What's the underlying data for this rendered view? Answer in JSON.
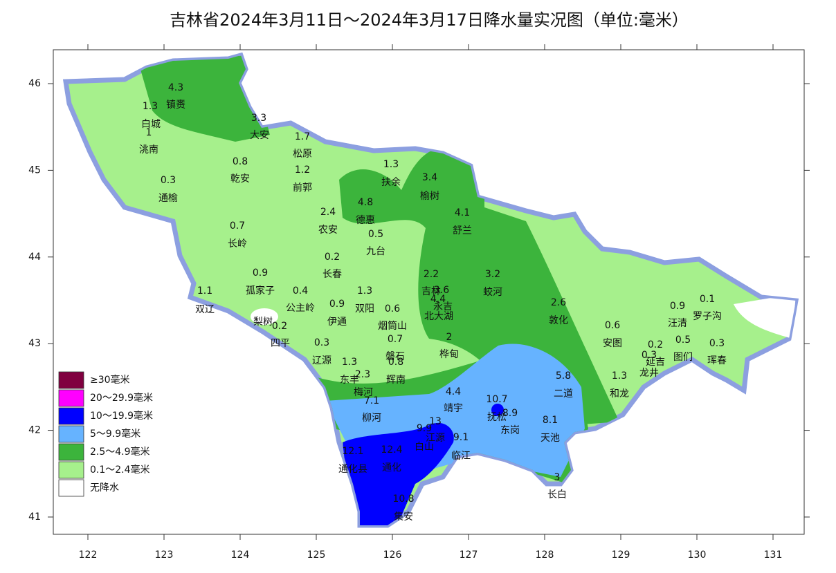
{
  "title": "吉林省2024年3月11日～2024年3月17日降水量实况图（单位:毫米）",
  "map": {
    "xticks": [
      122,
      123,
      124,
      125,
      126,
      127,
      128,
      129,
      130,
      131
    ],
    "yticks": [
      41,
      42,
      43,
      44,
      45,
      46
    ],
    "stations": [
      {
        "name": "镇赉",
        "value": 4.3
      },
      {
        "name": "白城",
        "value": 1.3
      },
      {
        "name": "洮南",
        "value": 1
      },
      {
        "name": "大安",
        "value": 3.3
      },
      {
        "name": "松原",
        "value": 1.7
      },
      {
        "name": "乾安",
        "value": 0.8
      },
      {
        "name": "前郭",
        "value": 1.2
      },
      {
        "name": "扶余",
        "value": 1.3
      },
      {
        "name": "通榆",
        "value": 0.3
      },
      {
        "name": "榆树",
        "value": 3.4
      },
      {
        "name": "德惠",
        "value": 4.8
      },
      {
        "name": "农安",
        "value": 2.4
      },
      {
        "name": "舒兰",
        "value": 4.1
      },
      {
        "name": "九台",
        "value": 0.5
      },
      {
        "name": "长岭",
        "value": 0.7
      },
      {
        "name": "长春",
        "value": 0.2
      },
      {
        "name": "吉林",
        "value": 2.2
      },
      {
        "name": "蛟河",
        "value": 3.2
      },
      {
        "name": "永吉",
        "value": 3.6
      },
      {
        "name": "北大湖",
        "value": 4.4
      },
      {
        "name": "孤家子",
        "value": 0.9
      },
      {
        "name": "公主岭",
        "value": 0.4
      },
      {
        "name": "双辽",
        "value": 1.1
      },
      {
        "name": "伊通",
        "value": 0.9
      },
      {
        "name": "双阳",
        "value": 1.3
      },
      {
        "name": "烟筒山",
        "value": 0.6
      },
      {
        "name": "梨树"
      },
      {
        "name": "四平",
        "value": 0.2
      },
      {
        "name": "敦化",
        "value": 2.6
      },
      {
        "name": "汪清",
        "value": 0.9
      },
      {
        "name": "罗子沟",
        "value": 0.1
      },
      {
        "name": "安图",
        "value": 0.6
      },
      {
        "name": "磐石",
        "value": 0.7
      },
      {
        "name": "桦甸",
        "value": 2
      },
      {
        "name": "辽源",
        "value": 0.3
      },
      {
        "name": "延吉",
        "value": 0.2
      },
      {
        "name": "图们",
        "value": 0.5
      },
      {
        "name": "龙井",
        "value": 0.3
      },
      {
        "name": "珲春",
        "value": 0.3
      },
      {
        "name": "东丰",
        "value": 1.3
      },
      {
        "name": "辉南",
        "value": 0.8
      },
      {
        "name": "梅河",
        "value": 2.3
      },
      {
        "name": "二道",
        "value": 5.8
      },
      {
        "name": "和龙",
        "value": 1.3
      },
      {
        "name": "靖宇",
        "value": 4.4
      },
      {
        "name": "柳河",
        "value": 7.1
      },
      {
        "name": "抚松",
        "value": 10.7
      },
      {
        "name": "东岗",
        "value": 8.9
      },
      {
        "name": "天池",
        "value": 8.1
      },
      {
        "name": "江源",
        "value": 13
      },
      {
        "name": "白山",
        "value": 9.9
      },
      {
        "name": "临江",
        "value": 9.1
      },
      {
        "name": "通化县",
        "value": 12.1
      },
      {
        "name": "通化",
        "value": 12.4
      },
      {
        "name": "长白",
        "value": 3
      },
      {
        "name": "集安",
        "value": 10.8
      }
    ],
    "legend": [
      {
        "label": "≥30毫米",
        "color": "#800040"
      },
      {
        "label": "20～29.9毫米",
        "color": "#ff00ff"
      },
      {
        "label": "10～19.9毫米",
        "color": "#0000ff"
      },
      {
        "label": "5～9.9毫米",
        "color": "#66b3ff"
      },
      {
        "label": "2.5～4.9毫米",
        "color": "#3cb43c"
      },
      {
        "label": "0.1～2.4毫米",
        "color": "#a6f08c"
      },
      {
        "label": "无降水",
        "color": "#ffffff"
      }
    ]
  }
}
